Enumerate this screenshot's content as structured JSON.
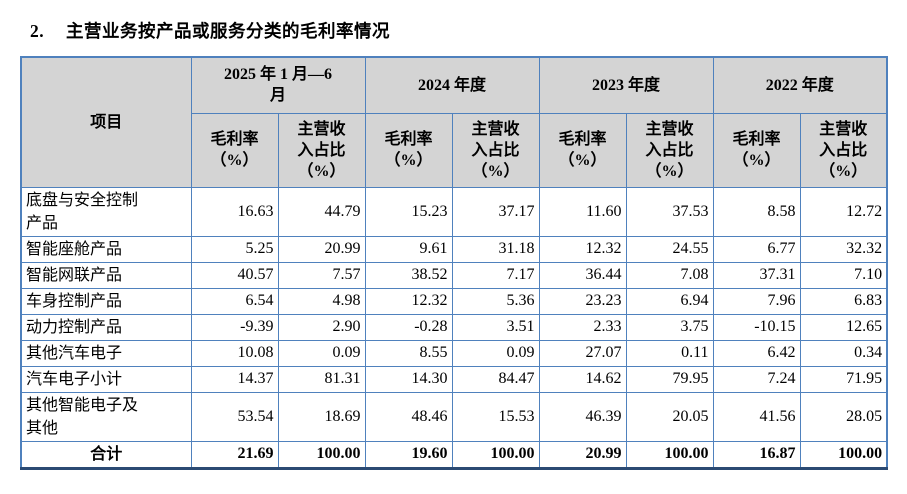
{
  "title": {
    "number": "2.",
    "text": "主营业务按产品或服务分类的毛利率情况"
  },
  "table": {
    "corner_header": "项目",
    "period_headers": [
      {
        "label": "2025 年 1 月—6\n月"
      },
      {
        "label": "2024 年度"
      },
      {
        "label": "2023 年度"
      },
      {
        "label": "2022 年度"
      }
    ],
    "sub_headers": {
      "gross_margin": "毛利率\n（%）",
      "revenue_share": "主营收\n入占比\n（%）"
    },
    "rows": [
      {
        "label": "底盘与安全控制\n产品",
        "values": [
          "16.63",
          "44.79",
          "15.23",
          "37.17",
          "11.60",
          "37.53",
          "8.58",
          "12.72"
        ],
        "total": false
      },
      {
        "label": "智能座舱产品",
        "values": [
          "5.25",
          "20.99",
          "9.61",
          "31.18",
          "12.32",
          "24.55",
          "6.77",
          "32.32"
        ],
        "total": false
      },
      {
        "label": "智能网联产品",
        "values": [
          "40.57",
          "7.57",
          "38.52",
          "7.17",
          "36.44",
          "7.08",
          "37.31",
          "7.10"
        ],
        "total": false
      },
      {
        "label": "车身控制产品",
        "values": [
          "6.54",
          "4.98",
          "12.32",
          "5.36",
          "23.23",
          "6.94",
          "7.96",
          "6.83"
        ],
        "total": false
      },
      {
        "label": "动力控制产品",
        "values": [
          "-9.39",
          "2.90",
          "-0.28",
          "3.51",
          "2.33",
          "3.75",
          "-10.15",
          "12.65"
        ],
        "total": false
      },
      {
        "label": "其他汽车电子",
        "values": [
          "10.08",
          "0.09",
          "8.55",
          "0.09",
          "27.07",
          "0.11",
          "6.42",
          "0.34"
        ],
        "total": false
      },
      {
        "label": "汽车电子小计",
        "values": [
          "14.37",
          "81.31",
          "14.30",
          "84.47",
          "14.62",
          "79.95",
          "7.24",
          "71.95"
        ],
        "total": false
      },
      {
        "label": "其他智能电子及\n其他",
        "values": [
          "53.54",
          "18.69",
          "48.46",
          "15.53",
          "46.39",
          "20.05",
          "41.56",
          "28.05"
        ],
        "total": false
      },
      {
        "label": "合计",
        "values": [
          "21.69",
          "100.00",
          "19.60",
          "100.00",
          "20.99",
          "100.00",
          "16.87",
          "100.00"
        ],
        "total": true
      }
    ]
  },
  "colors": {
    "border": "#4f81bd",
    "border_dark": "#2b4a73",
    "header_bg": "#d4d4d4",
    "text": "#000000",
    "page_bg": "#ffffff"
  }
}
